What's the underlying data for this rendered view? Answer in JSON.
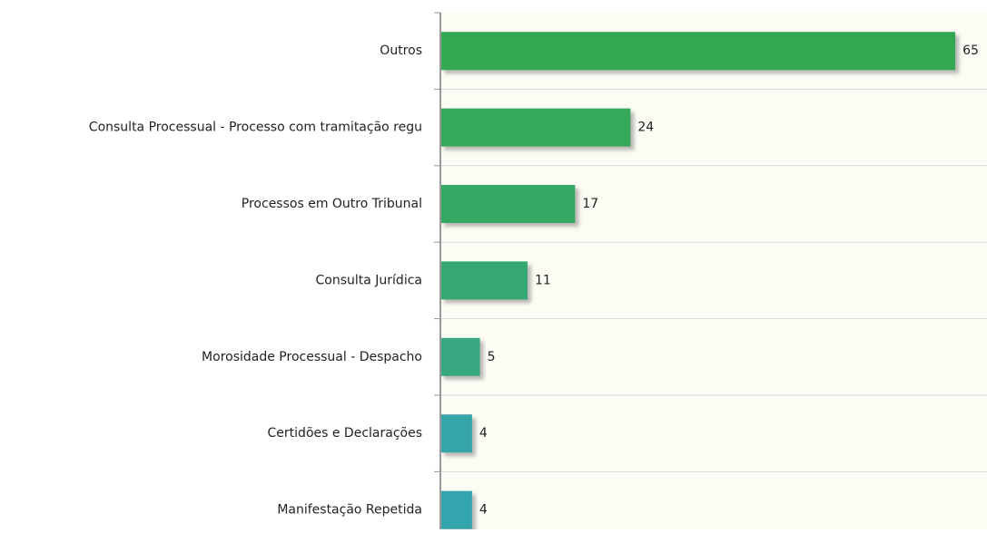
{
  "chart_data": {
    "type": "hbar",
    "categories": [
      "Outros",
      "Consulta Processual - Processo com tramitação regu",
      "Processos em Outro Tribunal",
      "Consulta Jurídica",
      "Morosidade Processual - Despacho",
      "Certidões e Declarações",
      "Manifestação Repetida"
    ],
    "values": [
      65,
      24,
      17,
      11,
      5,
      4,
      4
    ],
    "colors": [
      "#33a852",
      "#34a85a",
      "#35a864",
      "#36a872",
      "#37a880",
      "#35a5aa",
      "#35a5ad"
    ],
    "xlim": [
      0,
      69
    ],
    "grid": true
  }
}
